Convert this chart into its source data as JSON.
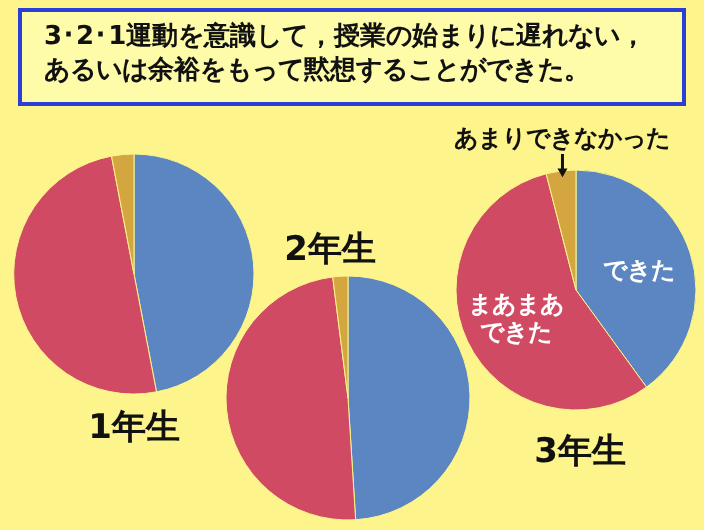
{
  "chart_data": [
    {
      "type": "pie",
      "title": "1年生",
      "annotations": [
        "3･2･1運動を意識して，授業の始まりに遅れない，あるいは余裕をもって黙想することができた。"
      ],
      "categories": [
        null,
        null,
        null
      ],
      "values": [
        47,
        50,
        3
      ],
      "colors": [
        "#5b86c1",
        "#cf4a62",
        "#d4a640"
      ]
    },
    {
      "type": "pie",
      "title": "2年生",
      "categories": [
        null,
        null,
        null
      ],
      "values": [
        49,
        49,
        2
      ],
      "colors": [
        "#5b86c1",
        "#cf4a62",
        "#d4a640"
      ]
    },
    {
      "type": "pie",
      "title": "3年生",
      "categories": [
        "できた",
        "まあまあできた",
        "あまりできなかった"
      ],
      "values": [
        40,
        56,
        4
      ],
      "colors": [
        "#5b86c1",
        "#cf4a62",
        "#d4a640"
      ]
    }
  ]
}
